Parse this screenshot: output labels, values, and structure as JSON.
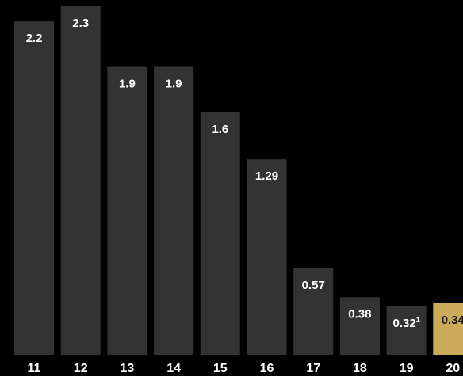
{
  "chart_data": {
    "type": "bar",
    "categories": [
      "11",
      "12",
      "13",
      "14",
      "15",
      "16",
      "17",
      "18",
      "19",
      "20"
    ],
    "values": [
      2.2,
      2.3,
      1.9,
      1.9,
      1.6,
      1.29,
      0.57,
      0.38,
      0.32,
      0.34
    ],
    "value_labels": [
      "2.2",
      "2.3",
      "1.9",
      "1.9",
      "1.6",
      "1.29",
      "0.57",
      "0.38",
      "0.32",
      "0.34"
    ],
    "footnotes": [
      "",
      "",
      "",
      "",
      "",
      "",
      "",
      "",
      "1",
      ""
    ],
    "highlight_index": 9,
    "title": "",
    "xlabel": "",
    "ylabel": "",
    "ylim": [
      0,
      2.3
    ],
    "grid": false,
    "legend": "none",
    "colors": {
      "background": "#000000",
      "bar": "#333333",
      "highlight": "#c9ab5b",
      "label": "#ffffff",
      "highlight_label": "#1a1a1a"
    }
  }
}
